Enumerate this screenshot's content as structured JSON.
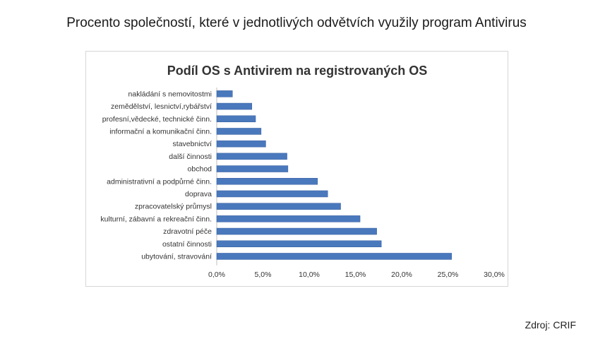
{
  "page": {
    "title": "Procento společností, které v jednotlivých odvětvích využily program Antivirus",
    "source": "Zdroj: CRIF"
  },
  "colors": {
    "bar_fill": "#4a78bd",
    "bar_stroke": "#3a62a0",
    "axis": "#bfbfbf",
    "text": "#333333"
  },
  "chart_data": {
    "type": "bar",
    "orientation": "horizontal",
    "title": "Podíl OS s Antivirem na registrovaných OS",
    "xlabel": "",
    "ylabel": "",
    "xlim": [
      0,
      0.3
    ],
    "ticks": [
      0,
      0.05,
      0.1,
      0.15,
      0.2,
      0.25,
      0.3
    ],
    "tick_labels": [
      "0,0%",
      "5,0%",
      "10,0%",
      "15,0%",
      "20,0%",
      "25,0%",
      "30,0%"
    ],
    "grid": false,
    "legend": "none",
    "categories": [
      "nakládání s nemovitostmi",
      "zemědělství, lesnictví,rybářství",
      "profesní,vědecké, technické činn.",
      "informační a komunikační činn.",
      "stavebnictví",
      "další činnosti",
      "obchod",
      "administrativní a podpůrné činn.",
      "doprava",
      "zpracovatelský průmysl",
      "kulturní, zábavní a rekreační činn.",
      "zdravotní péče",
      "ostatní činnosti",
      "ubytování, stravování"
    ],
    "values": [
      0.017,
      0.038,
      0.042,
      0.048,
      0.053,
      0.076,
      0.077,
      0.109,
      0.12,
      0.134,
      0.155,
      0.173,
      0.178,
      0.254
    ]
  }
}
